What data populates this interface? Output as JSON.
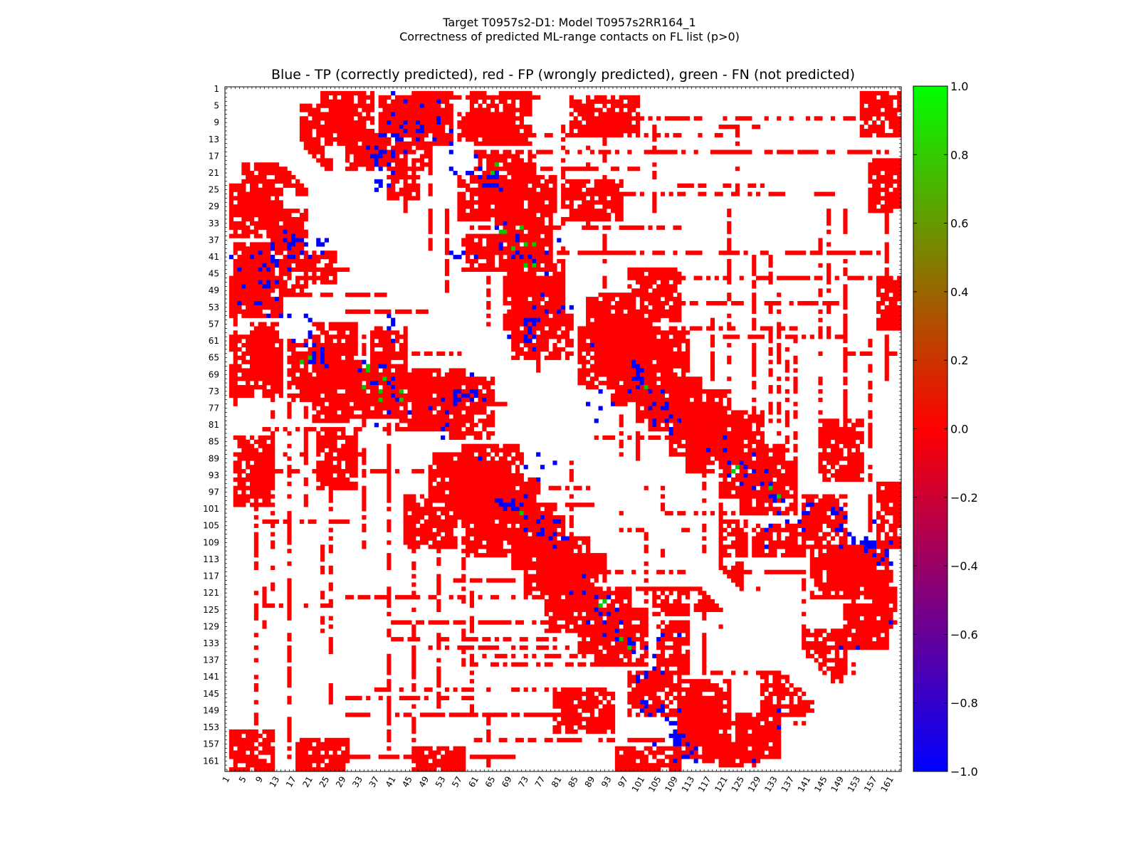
{
  "chart_data": {
    "type": "heatmap",
    "title": "Target T0957s2-D1: Model T0957s2RR164_1",
    "subtitle": "Correctness of predicted ML-range contacts on FL list (p>0)",
    "plot_title": "Blue - TP (correctly predicted), red - FP (wrongly predicted), green - FN (not predicted)",
    "n_residues": 163,
    "x_ticks": [
      1,
      5,
      9,
      13,
      17,
      21,
      25,
      29,
      33,
      37,
      41,
      45,
      49,
      53,
      57,
      61,
      65,
      69,
      73,
      77,
      81,
      85,
      89,
      93,
      97,
      101,
      105,
      109,
      113,
      117,
      121,
      125,
      129,
      133,
      137,
      141,
      145,
      149,
      153,
      157,
      161
    ],
    "y_ticks": [
      1,
      5,
      9,
      13,
      17,
      21,
      25,
      29,
      33,
      37,
      41,
      45,
      49,
      53,
      57,
      61,
      65,
      69,
      73,
      77,
      81,
      85,
      89,
      93,
      97,
      101,
      105,
      109,
      113,
      117,
      121,
      125,
      129,
      133,
      137,
      141,
      145,
      149,
      153,
      157,
      161
    ],
    "colorbar": {
      "vmin": -1.0,
      "vmax": 1.0,
      "ticks": [
        "1.0",
        "0.8",
        "0.6",
        "0.4",
        "0.2",
        "0.0",
        "−0.2",
        "−0.4",
        "−0.6",
        "−0.8",
        "−1.0"
      ],
      "stops": [
        {
          "value": -1.0,
          "color": "#0000ff"
        },
        {
          "value": 0.0,
          "color": "#ff0000"
        },
        {
          "value": 1.0,
          "color": "#00ff00"
        }
      ]
    },
    "colors": {
      "TP": "#0000ff",
      "FP": "#ff0000",
      "FN": "#00cc00"
    },
    "fp_blocks": [
      [
        5,
        13,
        19,
        31
      ],
      [
        6,
        12,
        38,
        47
      ],
      [
        6,
        13,
        50,
        55
      ],
      [
        7,
        13,
        57,
        70
      ],
      [
        8,
        12,
        88,
        96
      ],
      [
        14,
        19,
        20,
        24
      ],
      [
        14,
        20,
        42,
        50
      ],
      [
        18,
        24,
        20,
        26
      ],
      [
        20,
        27,
        40,
        47
      ],
      [
        22,
        32,
        57,
        70
      ],
      [
        22,
        30,
        71,
        80
      ],
      [
        23,
        32,
        83,
        96
      ],
      [
        24,
        36,
        2,
        8
      ],
      [
        25,
        36,
        9,
        14
      ],
      [
        30,
        40,
        12,
        20
      ],
      [
        36,
        44,
        58,
        68
      ],
      [
        36,
        46,
        69,
        76
      ],
      [
        38,
        52,
        3,
        12
      ],
      [
        42,
        55,
        70,
        82
      ],
      [
        44,
        56,
        98,
        110
      ],
      [
        46,
        55,
        2,
        14
      ],
      [
        55,
        65,
        70,
        84
      ],
      [
        58,
        72,
        86,
        95
      ],
      [
        60,
        74,
        2,
        14
      ],
      [
        62,
        75,
        17,
        29
      ],
      [
        66,
        79,
        30,
        42
      ],
      [
        68,
        82,
        46,
        58
      ],
      [
        72,
        82,
        103,
        113
      ],
      [
        76,
        88,
        108,
        120
      ],
      [
        78,
        86,
        121,
        130
      ],
      [
        80,
        92,
        112,
        118
      ],
      [
        84,
        100,
        4,
        12
      ],
      [
        88,
        99,
        50,
        60
      ],
      [
        90,
        104,
        55,
        69
      ],
      [
        94,
        104,
        62,
        76
      ],
      [
        98,
        112,
        58,
        70
      ],
      [
        100,
        115,
        70,
        80
      ],
      [
        104,
        112,
        120,
        126
      ],
      [
        108,
        122,
        73,
        84
      ],
      [
        110,
        122,
        142,
        156
      ],
      [
        112,
        127,
        80,
        90
      ],
      [
        114,
        122,
        120,
        125
      ],
      [
        116,
        130,
        156,
        161
      ],
      [
        120,
        135,
        86,
        98
      ],
      [
        125,
        138,
        90,
        102
      ],
      [
        128,
        140,
        105,
        112
      ],
      [
        130,
        142,
        140,
        150
      ],
      [
        140,
        150,
        98,
        110
      ],
      [
        144,
        154,
        80,
        94
      ],
      [
        146,
        160,
        110,
        120
      ],
      [
        150,
        160,
        124,
        134
      ],
      [
        154,
        163,
        2,
        12
      ],
      [
        156,
        163,
        18,
        30
      ],
      [
        158,
        163,
        46,
        58
      ],
      [
        158,
        163,
        95,
        110
      ],
      [
        158,
        162,
        120,
        128
      ]
    ],
    "fp_rows": [
      [
        38,
        2,
        14
      ],
      [
        41,
        2,
        24
      ],
      [
        44,
        14,
        30
      ],
      [
        50,
        18,
        40
      ],
      [
        54,
        30,
        50
      ],
      [
        64,
        40,
        58
      ],
      [
        70,
        46,
        62
      ],
      [
        76,
        40,
        68
      ],
      [
        84,
        88,
        112
      ],
      [
        88,
        10,
        40
      ],
      [
        92,
        30,
        62
      ],
      [
        96,
        60,
        90
      ],
      [
        102,
        96,
        132
      ],
      [
        106,
        96,
        112
      ],
      [
        110,
        124,
        150
      ],
      [
        118,
        56,
        80
      ],
      [
        124,
        8,
        30
      ],
      [
        128,
        40,
        70
      ],
      [
        132,
        40,
        80
      ],
      [
        136,
        60,
        90
      ],
      [
        140,
        100,
        130
      ],
      [
        146,
        30,
        60
      ],
      [
        150,
        50,
        80
      ],
      [
        152,
        110,
        140
      ],
      [
        160,
        30,
        70
      ],
      [
        20,
        56,
        100
      ],
      [
        24,
        110,
        130
      ],
      [
        10,
        120,
        130
      ],
      [
        16,
        130,
        160
      ],
      [
        58,
        100,
        140
      ]
    ],
    "fp_cols": [
      [
        3,
        38,
        100
      ],
      [
        8,
        90,
        163
      ],
      [
        12,
        30,
        120
      ],
      [
        16,
        60,
        140
      ],
      [
        26,
        94,
        150
      ],
      [
        34,
        60,
        110
      ],
      [
        40,
        60,
        158
      ],
      [
        46,
        110,
        160
      ],
      [
        52,
        100,
        150
      ],
      [
        60,
        120,
        150
      ],
      [
        82,
        10,
        40
      ],
      [
        92,
        6,
        30
      ],
      [
        100,
        62,
        90
      ],
      [
        104,
        10,
        30
      ],
      [
        116,
        80,
        140
      ],
      [
        122,
        30,
        70
      ],
      [
        128,
        40,
        80
      ],
      [
        134,
        50,
        95
      ],
      [
        138,
        60,
        110
      ],
      [
        144,
        36,
        80
      ],
      [
        150,
        30,
        80
      ],
      [
        156,
        60,
        130
      ],
      [
        160,
        18,
        70
      ],
      [
        120,
        100,
        130
      ],
      [
        110,
        150,
        163
      ],
      [
        64,
        150,
        163
      ]
    ],
    "tp_cells": [
      [
        9,
        40
      ],
      [
        9,
        44
      ],
      [
        10,
        43
      ],
      [
        11,
        47
      ],
      [
        11,
        48
      ],
      [
        12,
        38
      ],
      [
        12,
        39
      ],
      [
        13,
        42
      ],
      [
        13,
        43
      ],
      [
        13,
        47
      ],
      [
        13,
        51
      ],
      [
        14,
        55
      ],
      [
        17,
        36
      ],
      [
        17,
        37
      ],
      [
        17,
        38
      ],
      [
        17,
        41
      ],
      [
        17,
        61
      ],
      [
        18,
        37
      ],
      [
        20,
        38
      ],
      [
        21,
        56
      ],
      [
        21,
        59
      ],
      [
        21,
        60
      ],
      [
        21,
        65
      ],
      [
        21,
        66
      ],
      [
        22,
        62
      ],
      [
        22,
        66
      ],
      [
        24,
        63
      ],
      [
        24,
        64
      ],
      [
        24,
        65
      ],
      [
        25,
        37
      ],
      [
        34,
        66
      ],
      [
        35,
        15
      ],
      [
        37,
        15
      ],
      [
        37,
        19
      ],
      [
        37,
        23
      ],
      [
        38,
        16
      ],
      [
        38,
        20
      ],
      [
        38,
        23
      ],
      [
        38,
        24
      ],
      [
        38,
        67
      ],
      [
        39,
        16
      ],
      [
        39,
        67
      ],
      [
        40,
        19
      ],
      [
        40,
        24
      ],
      [
        41,
        2
      ],
      [
        41,
        7
      ],
      [
        41,
        12
      ],
      [
        41,
        16
      ],
      [
        41,
        17
      ],
      [
        41,
        21
      ],
      [
        41,
        56
      ],
      [
        41,
        57
      ],
      [
        41,
        61
      ],
      [
        41,
        70
      ],
      [
        41,
        72
      ],
      [
        41,
        74
      ],
      [
        42,
        12
      ],
      [
        42,
        75
      ],
      [
        44,
        4
      ],
      [
        44,
        9
      ],
      [
        44,
        11
      ],
      [
        44,
        16
      ],
      [
        47,
        9
      ],
      [
        48,
        5
      ],
      [
        48,
        10
      ],
      [
        50,
        77
      ],
      [
        52,
        4
      ],
      [
        52,
        8
      ],
      [
        52,
        9
      ],
      [
        53,
        75
      ],
      [
        55,
        11
      ],
      [
        55,
        16
      ],
      [
        55,
        20
      ],
      [
        55,
        40
      ],
      [
        56,
        73
      ],
      [
        56,
        74
      ],
      [
        56,
        76
      ],
      [
        57,
        73
      ],
      [
        58,
        74
      ],
      [
        58,
        40
      ],
      [
        60,
        69
      ],
      [
        60,
        73
      ],
      [
        61,
        73
      ],
      [
        62,
        89
      ],
      [
        62,
        20
      ],
      [
        64,
        22
      ],
      [
        65,
        21
      ],
      [
        65,
        22
      ],
      [
        66,
        24
      ],
      [
        67,
        25
      ],
      [
        68,
        33
      ],
      [
        69,
        100
      ],
      [
        70,
        99
      ],
      [
        71,
        36
      ],
      [
        71,
        37
      ],
      [
        71,
        40
      ],
      [
        72,
        100
      ],
      [
        72,
        102
      ],
      [
        73,
        98
      ],
      [
        73,
        103
      ],
      [
        74,
        59
      ],
      [
        74,
        61
      ],
      [
        75,
        56
      ],
      [
        75,
        57
      ],
      [
        75,
        60
      ],
      [
        75,
        63
      ],
      [
        76,
        88
      ],
      [
        76,
        94
      ],
      [
        77,
        103
      ],
      [
        77,
        106
      ],
      [
        78,
        40
      ],
      [
        78,
        45
      ],
      [
        78,
        54
      ],
      [
        80,
        90
      ],
      [
        80,
        104
      ],
      [
        80,
        107
      ],
      [
        81,
        54
      ],
      [
        81,
        37
      ],
      [
        82,
        53
      ],
      [
        82,
        108
      ],
      [
        83,
        108
      ],
      [
        84,
        53
      ],
      [
        87,
        117
      ],
      [
        90,
        122
      ],
      [
        91,
        73
      ],
      [
        91,
        77
      ],
      [
        93,
        122
      ],
      [
        93,
        126
      ],
      [
        95,
        125
      ],
      [
        95,
        130
      ],
      [
        96,
        128
      ],
      [
        98,
        132
      ],
      [
        99,
        66
      ],
      [
        99,
        67
      ],
      [
        100,
        67
      ],
      [
        100,
        68
      ],
      [
        100,
        70
      ],
      [
        101,
        70
      ],
      [
        101,
        71
      ],
      [
        101,
        68
      ],
      [
        102,
        134
      ],
      [
        102,
        140
      ],
      [
        102,
        141
      ],
      [
        102,
        147
      ],
      [
        103,
        150
      ],
      [
        104,
        76
      ],
      [
        104,
        81
      ],
      [
        105,
        132
      ],
      [
        106,
        73
      ],
      [
        106,
        148
      ],
      [
        106,
        149
      ],
      [
        107,
        76
      ],
      [
        107,
        77
      ],
      [
        107,
        151
      ],
      [
        108,
        79
      ],
      [
        108,
        152
      ],
      [
        109,
        152
      ],
      [
        109,
        154
      ],
      [
        109,
        156
      ],
      [
        110,
        80
      ],
      [
        110,
        155
      ],
      [
        110,
        157
      ],
      [
        111,
        155
      ],
      [
        112,
        160
      ],
      [
        112,
        157
      ],
      [
        113,
        159
      ],
      [
        114,
        158
      ],
      [
        121,
        84
      ],
      [
        121,
        87
      ],
      [
        125,
        90
      ],
      [
        126,
        91
      ],
      [
        128,
        92
      ],
      [
        128,
        88
      ],
      [
        131,
        92
      ],
      [
        132,
        95
      ],
      [
        133,
        98
      ],
      [
        133,
        99
      ],
      [
        135,
        99
      ],
      [
        136,
        104
      ],
      [
        139,
        104
      ],
      [
        140,
        106
      ],
      [
        141,
        100
      ],
      [
        142,
        100
      ],
      [
        147,
        101
      ],
      [
        148,
        102
      ],
      [
        149,
        101
      ],
      [
        149,
        105
      ],
      [
        149,
        110
      ],
      [
        153,
        134
      ],
      [
        155,
        108
      ],
      [
        155,
        109
      ],
      [
        156,
        109
      ],
      [
        156,
        110
      ],
      [
        157,
        109
      ],
      [
        160,
        111
      ],
      [
        161,
        109
      ],
      [
        161,
        114
      ],
      [
        161,
        128
      ],
      [
        157,
        104
      ],
      [
        149,
        134
      ],
      [
        131,
        106
      ],
      [
        131,
        110
      ]
    ],
    "fn_cells": [
      [
        21,
        65
      ],
      [
        35,
        67
      ],
      [
        35,
        68
      ],
      [
        39,
        70
      ],
      [
        66,
        19
      ],
      [
        72,
        34
      ],
      [
        73,
        38
      ],
      [
        73,
        43
      ],
      [
        98,
        134
      ],
      [
        102,
        72
      ],
      [
        124,
        91
      ],
      [
        132,
        96
      ],
      [
        75,
        38
      ],
      [
        75,
        43
      ],
      [
        92,
        123
      ]
    ]
  }
}
